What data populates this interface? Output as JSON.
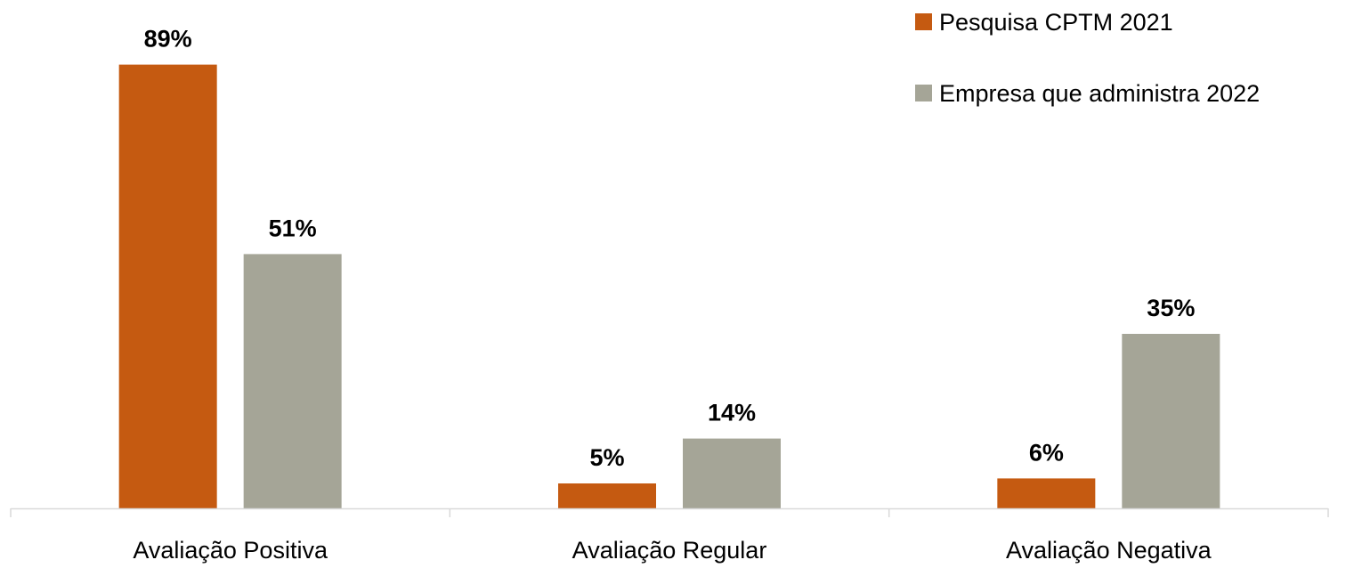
{
  "chart_data": {
    "type": "bar",
    "categories": [
      "Avaliação Positiva",
      "Avaliação Regular",
      "Avaliação Negativa"
    ],
    "series": [
      {
        "name": "Pesquisa CPTM 2021",
        "values": [
          89,
          5,
          6
        ],
        "labels": [
          "89%",
          "5%",
          "6%"
        ],
        "color": "#C55A11"
      },
      {
        "name": "Empresa que administra 2022",
        "values": [
          51,
          14,
          35
        ],
        "labels": [
          "51%",
          "14%",
          "35%"
        ],
        "color": "#A5A597"
      }
    ],
    "title": "",
    "xlabel": "",
    "ylabel": "",
    "ylim": [
      0,
      100
    ],
    "grid": false,
    "legend": "top-right",
    "axis_color": "#D9D9D9"
  }
}
